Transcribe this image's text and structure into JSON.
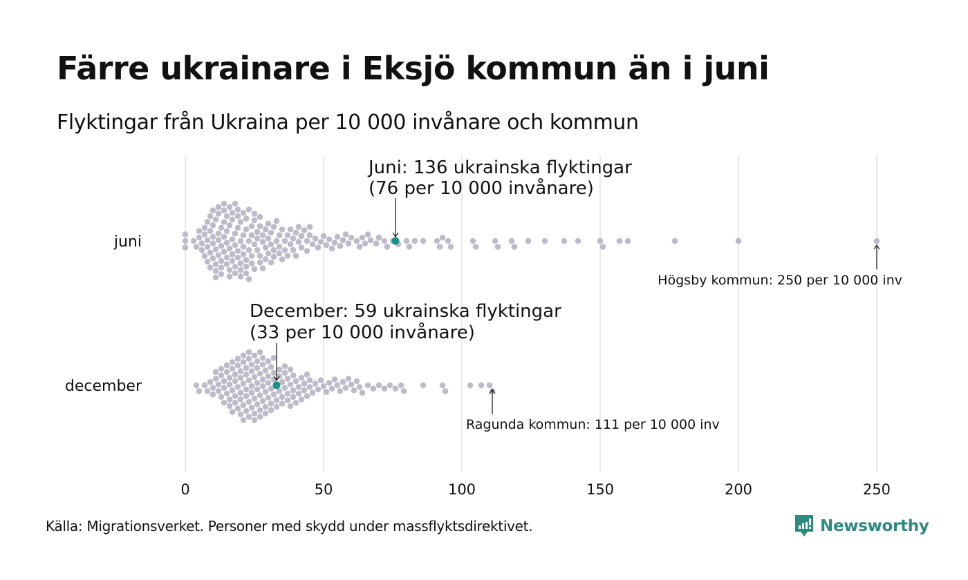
{
  "title": "Färre ukrainare i Eksjö kommun än i juni",
  "subtitle": "Flyktingar från Ukraina per 10 000 invånare och kommun",
  "source": "Källa: Migrationsverket. Personer med skydd under massflyktsdirektivet.",
  "logo": {
    "text": "Newsworthy",
    "color": "#2e8a80"
  },
  "colors": {
    "dot": "#bdbbca",
    "highlight": "#16928a",
    "grid": "#d4d4d4",
    "text": "#111111"
  },
  "chart_data": {
    "type": "scatter",
    "subtype": "beeswarm",
    "title": "Färre ukrainare i Eksjö kommun än i juni",
    "xlabel": "",
    "ylabel": "",
    "xlim": [
      0,
      250
    ],
    "xticks": [
      0,
      50,
      100,
      150,
      200,
      250
    ],
    "xtick_labels": [
      "0",
      "50",
      "100",
      "150",
      "200",
      "250"
    ],
    "grid": true,
    "categories": [
      "juni",
      "december"
    ],
    "series": [
      {
        "name": "juni",
        "highlight_value": 76,
        "values": [
          0,
          0,
          0,
          3,
          4,
          5,
          5,
          6,
          6,
          7,
          7,
          7,
          8,
          8,
          8,
          8,
          9,
          9,
          9,
          9,
          10,
          10,
          10,
          10,
          10,
          11,
          11,
          11,
          11,
          11,
          12,
          12,
          12,
          12,
          12,
          13,
          13,
          13,
          13,
          13,
          14,
          14,
          14,
          14,
          14,
          15,
          15,
          15,
          15,
          15,
          16,
          16,
          16,
          16,
          16,
          17,
          17,
          17,
          17,
          17,
          18,
          18,
          18,
          18,
          18,
          19,
          19,
          19,
          19,
          19,
          20,
          20,
          20,
          20,
          20,
          21,
          21,
          21,
          21,
          22,
          22,
          22,
          22,
          22,
          23,
          23,
          23,
          23,
          24,
          24,
          24,
          24,
          25,
          25,
          25,
          25,
          26,
          26,
          26,
          27,
          27,
          27,
          27,
          28,
          28,
          28,
          29,
          29,
          29,
          30,
          30,
          30,
          31,
          31,
          31,
          32,
          32,
          32,
          33,
          33,
          34,
          34,
          34,
          35,
          35,
          36,
          36,
          37,
          37,
          38,
          38,
          39,
          39,
          40,
          40,
          41,
          41,
          42,
          42,
          43,
          44,
          44,
          45,
          45,
          46,
          47,
          48,
          49,
          50,
          51,
          52,
          53,
          54,
          55,
          56,
          57,
          58,
          59,
          60,
          62,
          63,
          64,
          65,
          66,
          67,
          69,
          70,
          72,
          73,
          75,
          77,
          80,
          81,
          83,
          86,
          91,
          92,
          93,
          95,
          96,
          104,
          105,
          112,
          113,
          118,
          119,
          124,
          130,
          137,
          142,
          150,
          151,
          157,
          160,
          177,
          200,
          250
        ]
      },
      {
        "name": "december",
        "highlight_value": 33,
        "values": [
          4,
          5,
          7,
          8,
          9,
          10,
          10,
          11,
          11,
          12,
          12,
          13,
          13,
          13,
          14,
          14,
          14,
          15,
          15,
          15,
          16,
          16,
          16,
          16,
          17,
          17,
          17,
          17,
          18,
          18,
          18,
          18,
          19,
          19,
          19,
          19,
          20,
          20,
          20,
          20,
          20,
          21,
          21,
          21,
          21,
          21,
          22,
          22,
          22,
          22,
          22,
          23,
          23,
          23,
          23,
          23,
          24,
          24,
          24,
          24,
          24,
          25,
          25,
          25,
          25,
          25,
          26,
          26,
          26,
          26,
          26,
          27,
          27,
          27,
          27,
          27,
          28,
          28,
          28,
          28,
          28,
          29,
          29,
          29,
          29,
          30,
          30,
          30,
          30,
          31,
          31,
          31,
          31,
          32,
          32,
          32,
          32,
          33,
          33,
          33,
          34,
          34,
          34,
          35,
          35,
          35,
          36,
          36,
          36,
          37,
          37,
          37,
          38,
          38,
          38,
          39,
          39,
          39,
          40,
          40,
          41,
          41,
          42,
          42,
          43,
          43,
          44,
          44,
          45,
          45,
          46,
          47,
          48,
          49,
          50,
          51,
          52,
          53,
          54,
          55,
          56,
          57,
          58,
          59,
          60,
          61,
          62,
          63,
          64,
          66,
          68,
          70,
          72,
          74,
          76,
          78,
          79,
          86,
          93,
          94,
          103,
          107,
          110,
          111
        ]
      }
    ],
    "annotations": [
      {
        "target": "juni",
        "line1": "Juni: 136 ukrainska flyktingar",
        "line2": "(76 per 10 000 invånare)",
        "value": 76
      },
      {
        "target": "december",
        "line1": "December:  59 ukrainska flyktingar",
        "line2": "(33 per 10 000 invånare)",
        "value": 33
      },
      {
        "target": "juni",
        "text": "Högsby kommun: 250 per 10 000 inv",
        "value": 250
      },
      {
        "target": "december",
        "text": "Ragunda kommun: 111 per 10 000 inv",
        "value": 111
      }
    ]
  }
}
